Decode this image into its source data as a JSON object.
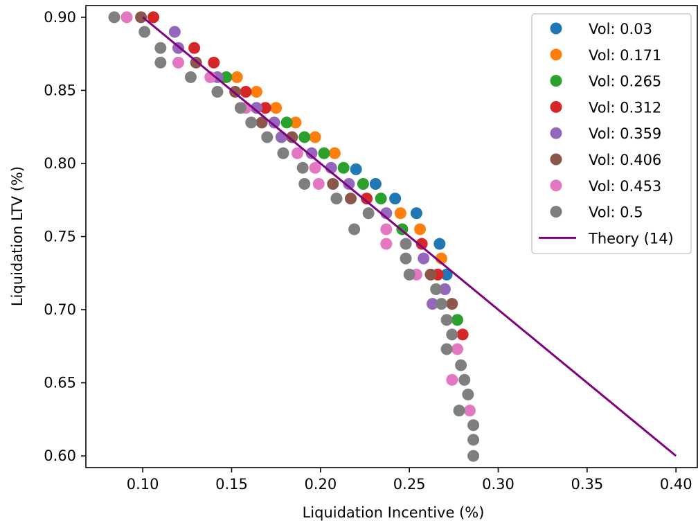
{
  "chart_data": {
    "type": "scatter",
    "xlabel": "Liquidation Incentive (%)",
    "ylabel": "Liquidation LTV (%)",
    "xlim": [
      0.068,
      0.412
    ],
    "ylim": [
      0.592,
      0.908
    ],
    "x_ticks": [
      "0.10",
      "0.15",
      "0.20",
      "0.25",
      "0.30",
      "0.35",
      "0.40"
    ],
    "y_ticks": [
      "0.60",
      "0.65",
      "0.70",
      "0.75",
      "0.80",
      "0.85",
      "0.90"
    ],
    "legend_position": "upper right",
    "series": [
      {
        "name": "Vol: 0.03",
        "color": "#1f77b4",
        "points": [
          [
            0.22,
            0.796
          ],
          [
            0.231,
            0.786
          ],
          [
            0.242,
            0.776
          ],
          [
            0.254,
            0.766
          ],
          [
            0.267,
            0.745
          ],
          [
            0.271,
            0.724
          ]
        ]
      },
      {
        "name": "Vol: 0.171",
        "color": "#ff7f0e",
        "points": [
          [
            0.153,
            0.859
          ],
          [
            0.164,
            0.849
          ],
          [
            0.175,
            0.838
          ],
          [
            0.186,
            0.828
          ],
          [
            0.197,
            0.818
          ],
          [
            0.208,
            0.807
          ],
          [
            0.245,
            0.766
          ],
          [
            0.256,
            0.755
          ],
          [
            0.268,
            0.735
          ]
        ]
      },
      {
        "name": "Vol: 0.265",
        "color": "#2ca02c",
        "points": [
          [
            0.147,
            0.859
          ],
          [
            0.181,
            0.828
          ],
          [
            0.191,
            0.818
          ],
          [
            0.202,
            0.807
          ],
          [
            0.213,
            0.797
          ],
          [
            0.224,
            0.786
          ],
          [
            0.234,
            0.776
          ],
          [
            0.246,
            0.755
          ],
          [
            0.277,
            0.693
          ]
        ]
      },
      {
        "name": "Vol: 0.312",
        "color": "#d62728",
        "points": [
          [
            0.106,
            0.9
          ],
          [
            0.129,
            0.879
          ],
          [
            0.14,
            0.869
          ],
          [
            0.158,
            0.849
          ],
          [
            0.169,
            0.838
          ],
          [
            0.226,
            0.776
          ],
          [
            0.257,
            0.745
          ],
          [
            0.266,
            0.724
          ],
          [
            0.28,
            0.683
          ]
        ]
      },
      {
        "name": "Vol: 0.359",
        "color": "#9467bd",
        "points": [
          [
            0.118,
            0.89
          ],
          [
            0.12,
            0.879
          ],
          [
            0.142,
            0.859
          ],
          [
            0.164,
            0.838
          ],
          [
            0.174,
            0.828
          ],
          [
            0.178,
            0.818
          ],
          [
            0.195,
            0.807
          ],
          [
            0.206,
            0.797
          ],
          [
            0.216,
            0.786
          ],
          [
            0.237,
            0.766
          ],
          [
            0.258,
            0.735
          ],
          [
            0.27,
            0.714
          ],
          [
            0.263,
            0.704
          ]
        ]
      },
      {
        "name": "Vol: 0.406",
        "color": "#8c564b",
        "points": [
          [
            0.099,
            0.9
          ],
          [
            0.13,
            0.869
          ],
          [
            0.152,
            0.849
          ],
          [
            0.167,
            0.828
          ],
          [
            0.184,
            0.818
          ],
          [
            0.207,
            0.786
          ],
          [
            0.217,
            0.776
          ],
          [
            0.262,
            0.724
          ],
          [
            0.274,
            0.704
          ]
        ]
      },
      {
        "name": "Vol: 0.453",
        "color": "#e377c2",
        "points": [
          [
            0.091,
            0.9
          ],
          [
            0.12,
            0.869
          ],
          [
            0.138,
            0.859
          ],
          [
            0.158,
            0.838
          ],
          [
            0.187,
            0.807
          ],
          [
            0.197,
            0.797
          ],
          [
            0.199,
            0.786
          ],
          [
            0.237,
            0.755
          ],
          [
            0.237,
            0.745
          ],
          [
            0.254,
            0.724
          ],
          [
            0.277,
            0.673
          ],
          [
            0.274,
            0.652
          ],
          [
            0.284,
            0.631
          ]
        ]
      },
      {
        "name": "Vol: 0.5",
        "color": "#7f7f7f",
        "points": [
          [
            0.084,
            0.9
          ],
          [
            0.101,
            0.89
          ],
          [
            0.11,
            0.879
          ],
          [
            0.11,
            0.869
          ],
          [
            0.127,
            0.859
          ],
          [
            0.142,
            0.849
          ],
          [
            0.155,
            0.838
          ],
          [
            0.161,
            0.828
          ],
          [
            0.17,
            0.818
          ],
          [
            0.179,
            0.807
          ],
          [
            0.19,
            0.797
          ],
          [
            0.191,
            0.786
          ],
          [
            0.209,
            0.776
          ],
          [
            0.227,
            0.766
          ],
          [
            0.219,
            0.755
          ],
          [
            0.248,
            0.745
          ],
          [
            0.248,
            0.735
          ],
          [
            0.25,
            0.724
          ],
          [
            0.265,
            0.714
          ],
          [
            0.268,
            0.704
          ],
          [
            0.271,
            0.693
          ],
          [
            0.274,
            0.683
          ],
          [
            0.271,
            0.673
          ],
          [
            0.279,
            0.662
          ],
          [
            0.281,
            0.652
          ],
          [
            0.283,
            0.642
          ],
          [
            0.278,
            0.631
          ],
          [
            0.286,
            0.621
          ],
          [
            0.286,
            0.611
          ],
          [
            0.286,
            0.6
          ]
        ]
      }
    ],
    "line": {
      "name": "Theory (14)",
      "color": "#800080",
      "x": [
        0.1,
        0.4
      ],
      "y": [
        0.9,
        0.6
      ]
    }
  }
}
